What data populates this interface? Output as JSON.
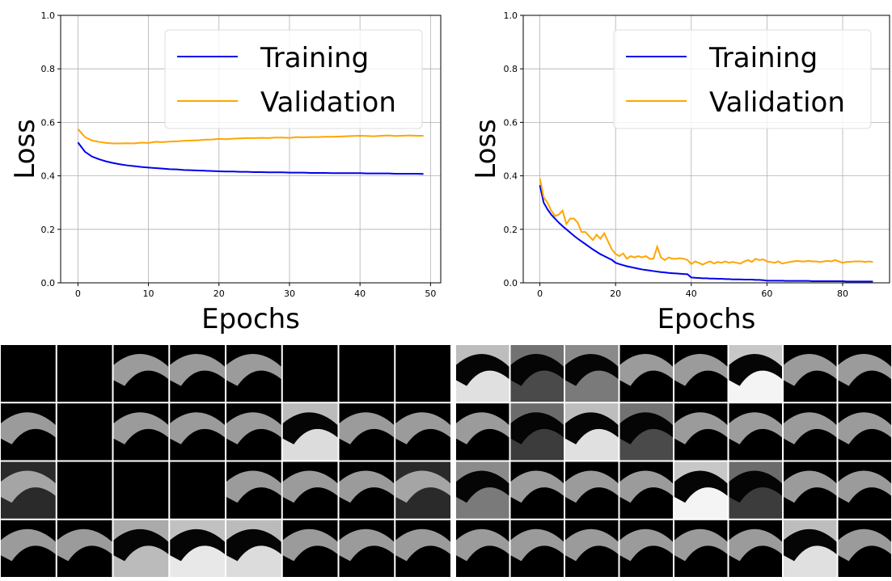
{
  "chart_data": [
    {
      "type": "line",
      "x_label": "Epochs",
      "y_label": "Loss",
      "x": [
        0,
        1,
        2,
        3,
        4,
        5,
        6,
        7,
        8,
        9,
        10,
        11,
        12,
        13,
        14,
        15,
        16,
        17,
        18,
        19,
        20,
        21,
        22,
        23,
        24,
        25,
        26,
        27,
        28,
        29,
        30,
        31,
        32,
        33,
        34,
        35,
        36,
        37,
        38,
        39,
        40,
        41,
        42,
        43,
        44,
        45,
        46,
        47,
        48,
        49
      ],
      "series": [
        {
          "name": "Training",
          "color": "#0000ee",
          "values": [
            0.525,
            0.49,
            0.472,
            0.462,
            0.454,
            0.448,
            0.443,
            0.439,
            0.436,
            0.433,
            0.431,
            0.429,
            0.427,
            0.425,
            0.424,
            0.422,
            0.421,
            0.42,
            0.419,
            0.418,
            0.417,
            0.416,
            0.416,
            0.415,
            0.415,
            0.414,
            0.414,
            0.413,
            0.413,
            0.413,
            0.412,
            0.412,
            0.412,
            0.411,
            0.411,
            0.411,
            0.41,
            0.41,
            0.41,
            0.41,
            0.41,
            0.409,
            0.409,
            0.409,
            0.409,
            0.408,
            0.408,
            0.408,
            0.408,
            0.407
          ]
        },
        {
          "name": "Validation",
          "color": "#ffa500",
          "values": [
            0.575,
            0.545,
            0.532,
            0.527,
            0.523,
            0.521,
            0.521,
            0.522,
            0.521,
            0.524,
            0.523,
            0.527,
            0.526,
            0.528,
            0.529,
            0.531,
            0.532,
            0.533,
            0.535,
            0.536,
            0.538,
            0.537,
            0.539,
            0.54,
            0.541,
            0.541,
            0.542,
            0.541,
            0.543,
            0.543,
            0.542,
            0.545,
            0.544,
            0.545,
            0.545,
            0.546,
            0.546,
            0.547,
            0.548,
            0.549,
            0.55,
            0.549,
            0.548,
            0.55,
            0.551,
            0.549,
            0.55,
            0.551,
            0.55,
            0.55
          ]
        }
      ],
      "xlim": [
        -2.45,
        51.45
      ],
      "xticks": [
        0,
        10,
        20,
        30,
        40,
        50
      ],
      "ylim": [
        0,
        1
      ],
      "yticks": [
        {
          "value": 0,
          "label": "0.0"
        },
        {
          "value": 0.2,
          "label": "0.2"
        },
        {
          "value": 0.4,
          "label": "0.4"
        },
        {
          "value": 0.6,
          "label": "0.6"
        },
        {
          "value": 0.8,
          "label": "0.8"
        },
        {
          "value": 1,
          "label": "1.0"
        }
      ],
      "grid": true,
      "legend": "upper right"
    },
    {
      "type": "line",
      "x_label": "Epochs",
      "y_label": "Loss",
      "x": [
        0,
        1,
        2,
        3,
        4,
        5,
        6,
        7,
        8,
        9,
        10,
        11,
        12,
        13,
        14,
        15,
        16,
        17,
        18,
        19,
        20,
        21,
        22,
        23,
        24,
        25,
        26,
        27,
        28,
        29,
        30,
        31,
        32,
        33,
        34,
        35,
        36,
        37,
        38,
        39,
        40,
        41,
        42,
        43,
        44,
        45,
        46,
        47,
        48,
        49,
        50,
        51,
        52,
        53,
        54,
        55,
        56,
        57,
        58,
        59,
        60,
        61,
        62,
        63,
        64,
        65,
        66,
        67,
        68,
        69,
        70,
        71,
        72,
        73,
        74,
        75,
        76,
        77,
        78,
        79,
        80,
        81,
        82,
        83,
        84,
        85,
        86,
        87,
        88
      ],
      "series": [
        {
          "name": "Training",
          "color": "#0000ee",
          "values": [
            0.365,
            0.3,
            0.275,
            0.255,
            0.24,
            0.225,
            0.212,
            0.2,
            0.188,
            0.176,
            0.165,
            0.155,
            0.145,
            0.135,
            0.125,
            0.116,
            0.107,
            0.1,
            0.093,
            0.086,
            0.075,
            0.07,
            0.066,
            0.062,
            0.059,
            0.056,
            0.053,
            0.05,
            0.048,
            0.046,
            0.044,
            0.042,
            0.04,
            0.039,
            0.037,
            0.036,
            0.035,
            0.034,
            0.033,
            0.032,
            0.02,
            0.019,
            0.018,
            0.017,
            0.017,
            0.016,
            0.016,
            0.015,
            0.015,
            0.014,
            0.014,
            0.013,
            0.013,
            0.013,
            0.012,
            0.012,
            0.012,
            0.011,
            0.011,
            0.01,
            0.008,
            0.008,
            0.008,
            0.008,
            0.008,
            0.007,
            0.007,
            0.007,
            0.007,
            0.007,
            0.007,
            0.007,
            0.006,
            0.006,
            0.006,
            0.006,
            0.006,
            0.006,
            0.006,
            0.006,
            0.006,
            0.005,
            0.005,
            0.005,
            0.005,
            0.005,
            0.005,
            0.005,
            0.005
          ]
        },
        {
          "name": "Validation",
          "color": "#ffa500",
          "values": [
            0.39,
            0.32,
            0.3,
            0.27,
            0.25,
            0.255,
            0.27,
            0.22,
            0.24,
            0.24,
            0.225,
            0.19,
            0.19,
            0.175,
            0.16,
            0.18,
            0.165,
            0.185,
            0.155,
            0.125,
            0.108,
            0.1,
            0.11,
            0.09,
            0.1,
            0.095,
            0.1,
            0.095,
            0.1,
            0.09,
            0.09,
            0.135,
            0.095,
            0.085,
            0.095,
            0.09,
            0.09,
            0.092,
            0.09,
            0.085,
            0.07,
            0.08,
            0.075,
            0.068,
            0.075,
            0.08,
            0.072,
            0.078,
            0.075,
            0.08,
            0.075,
            0.078,
            0.075,
            0.072,
            0.08,
            0.085,
            0.078,
            0.09,
            0.085,
            0.088,
            0.08,
            0.078,
            0.075,
            0.08,
            0.072,
            0.075,
            0.078,
            0.08,
            0.082,
            0.08,
            0.08,
            0.082,
            0.08,
            0.08,
            0.078,
            0.08,
            0.082,
            0.08,
            0.085,
            0.08,
            0.075,
            0.078,
            0.078,
            0.08,
            0.08,
            0.08,
            0.078,
            0.08,
            0.078
          ]
        }
      ],
      "xlim": [
        -4.4,
        92.4
      ],
      "xticks": [
        0,
        20,
        40,
        60,
        80
      ],
      "ylim": [
        0,
        1
      ],
      "yticks": [
        {
          "value": 0,
          "label": "0.0"
        },
        {
          "value": 0.2,
          "label": "0.2"
        },
        {
          "value": 0.4,
          "label": "0.4"
        },
        {
          "value": 0.6,
          "label": "0.6"
        },
        {
          "value": 0.8,
          "label": "0.8"
        },
        {
          "value": 1,
          "label": "1.0"
        }
      ],
      "grid": true,
      "legend": "upper right"
    }
  ]
}
